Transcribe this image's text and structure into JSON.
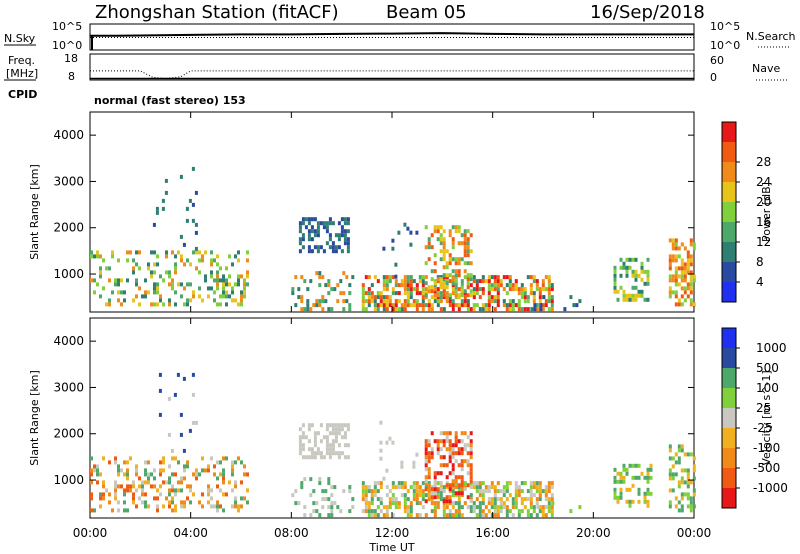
{
  "header": {
    "station": "Zhongshan Station (fitACF)",
    "beam": "Beam 05",
    "date": "16/Sep/2018"
  },
  "panel_labels": {
    "nsky": "N.Sky",
    "freq": "Freq.",
    "freq_unit": "[MHz]",
    "cpid": "CPID",
    "nsearch": "N.Search",
    "nave": "Nave",
    "cpid_value": "normal (fast stereo) 153"
  },
  "colors": {
    "power": [
      "#1f30f0",
      "#2a4aa0",
      "#2f7e72",
      "#4ea86a",
      "#7fd03a",
      "#e8c41a",
      "#f08a18",
      "#f05a12",
      "#e81818"
    ],
    "velocity": [
      "#e81818",
      "#f05a12",
      "#f08a18",
      "#f0b020",
      "#c8c8c0",
      "#7fd03a",
      "#4ea86a",
      "#2a4aa0",
      "#1f30f0"
    ]
  },
  "chart_data": [
    {
      "type": "line",
      "panel": "N.Sky / N.Search",
      "x_range": [
        "00:00",
        "24:00"
      ],
      "left_ticks": [
        "10^5",
        "10^0"
      ],
      "right_ticks": [
        "10^5",
        "10^0"
      ],
      "series": [
        {
          "name": "N.Sky",
          "style": "solid",
          "x": [
            0,
            1,
            2,
            4,
            6,
            8,
            10,
            12,
            14,
            16,
            18,
            20,
            22,
            24
          ],
          "y_frac": [
            0.55,
            0.55,
            0.56,
            0.58,
            0.6,
            0.6,
            0.62,
            0.63,
            0.65,
            0.62,
            0.6,
            0.6,
            0.6,
            0.6
          ]
        },
        {
          "name": "N.Search",
          "style": "dotted",
          "x": [
            0,
            24
          ],
          "y_frac": [
            0.48,
            0.48
          ]
        }
      ]
    },
    {
      "type": "line",
      "panel": "Freq. / Nave",
      "x_range": [
        "00:00",
        "24:00"
      ],
      "left_ticks": [
        "18",
        "8"
      ],
      "right_ticks": [
        "60",
        "0"
      ],
      "series": [
        {
          "name": "Freq.",
          "style": "dotted",
          "x": [
            0,
            2.0,
            2.5,
            3.0,
            3.6,
            4.0,
            24
          ],
          "y": [
            11.5,
            11.5,
            9.0,
            8.6,
            9.2,
            11.5,
            11.5
          ]
        },
        {
          "name": "Nave",
          "style": "solid",
          "x": [
            0,
            24
          ],
          "y": [
            8.6,
            8.6
          ]
        }
      ]
    },
    {
      "type": "heatmap",
      "panel": "power",
      "xlabel": "",
      "ylabel": "Slant Range [km]",
      "ylim": [
        180,
        4500
      ],
      "yticks": [
        1000,
        2000,
        3000,
        4000
      ],
      "colorbar_label": "Power [dB]",
      "colorbar_ticks": [
        "4",
        "8",
        "12",
        "16",
        "20",
        "24",
        "28"
      ],
      "regions": [
        {
          "t": [
            0.0,
            6.3
          ],
          "r": [
            300,
            1500
          ],
          "density": 0.28,
          "levels": [
            2,
            3,
            4,
            5,
            6
          ]
        },
        {
          "t": [
            2.5,
            4.2
          ],
          "r": [
            1500,
            3300
          ],
          "density": 0.04,
          "levels": [
            1,
            2
          ]
        },
        {
          "t": [
            8.3,
            10.3
          ],
          "r": [
            1450,
            2150
          ],
          "density": 0.55,
          "levels": [
            1,
            2
          ]
        },
        {
          "t": [
            8.0,
            10.5
          ],
          "r": [
            200,
            1000
          ],
          "density": 0.2,
          "levels": [
            2,
            3,
            6
          ]
        },
        {
          "t": [
            10.8,
            18.4
          ],
          "r": [
            200,
            900
          ],
          "density": 0.6,
          "levels": [
            2,
            3,
            4,
            5,
            6,
            7,
            8
          ]
        },
        {
          "t": [
            13.3,
            15.2
          ],
          "r": [
            500,
            2000
          ],
          "density": 0.45,
          "levels": [
            3,
            4,
            5,
            6,
            7
          ]
        },
        {
          "t": [
            11.5,
            13.0
          ],
          "r": [
            900,
            2400
          ],
          "density": 0.06,
          "levels": [
            1,
            2
          ]
        },
        {
          "t": [
            17.5,
            19.5
          ],
          "r": [
            200,
            500
          ],
          "density": 0.15,
          "levels": [
            1,
            2
          ]
        },
        {
          "t": [
            20.8,
            22.3
          ],
          "r": [
            400,
            1300
          ],
          "density": 0.45,
          "levels": [
            2,
            3,
            4,
            5
          ]
        },
        {
          "t": [
            23.0,
            24.0
          ],
          "r": [
            300,
            1700
          ],
          "density": 0.45,
          "levels": [
            4,
            5,
            6,
            7
          ]
        }
      ]
    },
    {
      "type": "heatmap",
      "panel": "velocity",
      "xlabel": "Time UT",
      "ylabel": "Slant Range [km]",
      "ylim": [
        180,
        4500
      ],
      "yticks": [
        1000,
        2000,
        3000,
        4000
      ],
      "xticks": [
        "00:00",
        "04:00",
        "08:00",
        "12:00",
        "16:00",
        "20:00",
        "00:00"
      ],
      "colorbar_label": "Velocity [m s^-1]",
      "colorbar_ticks": [
        "-1000",
        "-500",
        "-100",
        "-25",
        "25",
        "100",
        "500",
        "1000"
      ],
      "regions": [
        {
          "t": [
            0.0,
            6.3
          ],
          "r": [
            300,
            1500
          ],
          "density": 0.28,
          "levels": [
            1,
            2,
            3,
            4,
            6
          ]
        },
        {
          "t": [
            2.5,
            4.2
          ],
          "r": [
            1500,
            3300
          ],
          "density": 0.04,
          "levels": [
            4,
            7
          ]
        },
        {
          "t": [
            8.3,
            10.3
          ],
          "r": [
            1450,
            2150
          ],
          "density": 0.55,
          "levels": [
            4
          ]
        },
        {
          "t": [
            8.0,
            10.5
          ],
          "r": [
            200,
            1000
          ],
          "density": 0.2,
          "levels": [
            4,
            6
          ]
        },
        {
          "t": [
            10.8,
            18.4
          ],
          "r": [
            200,
            900
          ],
          "density": 0.6,
          "levels": [
            2,
            3,
            4,
            5,
            6
          ]
        },
        {
          "t": [
            13.3,
            15.2
          ],
          "r": [
            500,
            2000
          ],
          "density": 0.45,
          "levels": [
            0,
            1,
            2,
            4
          ]
        },
        {
          "t": [
            11.5,
            13.0
          ],
          "r": [
            900,
            2400
          ],
          "density": 0.06,
          "levels": [
            4
          ]
        },
        {
          "t": [
            17.5,
            19.5
          ],
          "r": [
            200,
            500
          ],
          "density": 0.15,
          "levels": [
            4,
            5
          ]
        },
        {
          "t": [
            20.8,
            22.3
          ],
          "r": [
            400,
            1300
          ],
          "density": 0.45,
          "levels": [
            3,
            5,
            6
          ]
        },
        {
          "t": [
            23.0,
            24.0
          ],
          "r": [
            300,
            1700
          ],
          "density": 0.45,
          "levels": [
            3,
            5,
            6
          ]
        }
      ]
    }
  ]
}
